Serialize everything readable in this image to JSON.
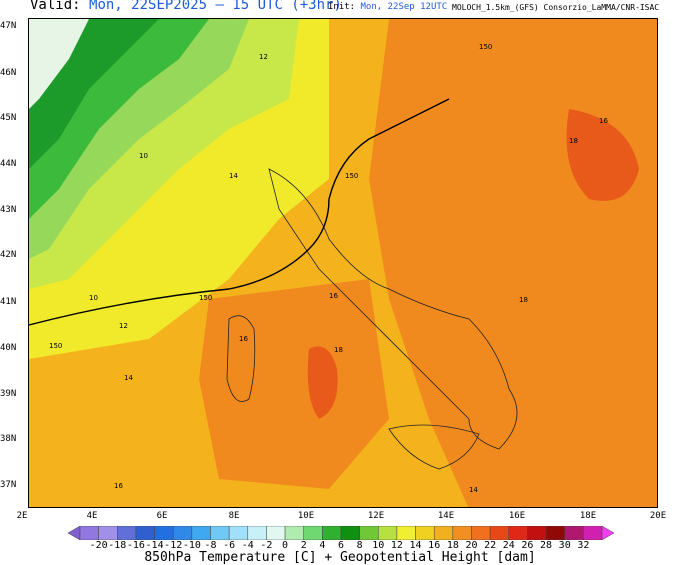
{
  "header": {
    "valid_label": "Valid:",
    "valid_value": "Mon, 22SEP2025 – 15 UTC (+3hr)",
    "init_label": "Init:",
    "init_value": "Mon, 22Sep 12UTC",
    "model_info": "MOLOCH_1.5km_(GFS) Consorzio_LaMMA/CNR-ISAC"
  },
  "map": {
    "lat_labels": [
      "47N",
      "46N",
      "45N",
      "44N",
      "43N",
      "42N",
      "41N",
      "40N",
      "39N",
      "38N",
      "37N"
    ],
    "lon_labels": [
      "2E",
      "4E",
      "6E",
      "8E",
      "10E",
      "12E",
      "14E",
      "16E",
      "18E",
      "20E"
    ],
    "colors": {
      "land_bg": "#f4b21c",
      "warm": "#f08a1e",
      "hot": "#e85a1a",
      "green_dark": "#1c9a2a",
      "green": "#3cba3c",
      "light_green": "#96d85a",
      "yellow_green": "#c8e84a",
      "yellow": "#f0ea2a",
      "pale": "#e6f5e6"
    }
  },
  "colorbar": {
    "labels": [
      "-20",
      "-18",
      "-16",
      "-14",
      "-12",
      "-10",
      "-8",
      "-6",
      "-4",
      "-2",
      "0",
      "2",
      "4",
      "6",
      "8",
      "10",
      "12",
      "14",
      "16",
      "18",
      "20",
      "22",
      "24",
      "26",
      "28",
      "30",
      "32"
    ],
    "colors": [
      "#8060d0",
      "#9078e0",
      "#a090e8",
      "#6070d8",
      "#3060d0",
      "#2070e0",
      "#3088e8",
      "#40a8f0",
      "#70c8f4",
      "#a0e0f8",
      "#c8f0f8",
      "#e0f8f0",
      "#b0ecb0",
      "#70d870",
      "#30b030",
      "#109010",
      "#70c838",
      "#b8e040",
      "#f0f030",
      "#f0d020",
      "#f0b020",
      "#f09020",
      "#f07020",
      "#e84818",
      "#e02818",
      "#c01010",
      "#900808",
      "#b01870",
      "#d020b0",
      "#f040f0"
    ]
  },
  "caption": "850hPa Temperature [C] + Geopotential Height [dam]"
}
